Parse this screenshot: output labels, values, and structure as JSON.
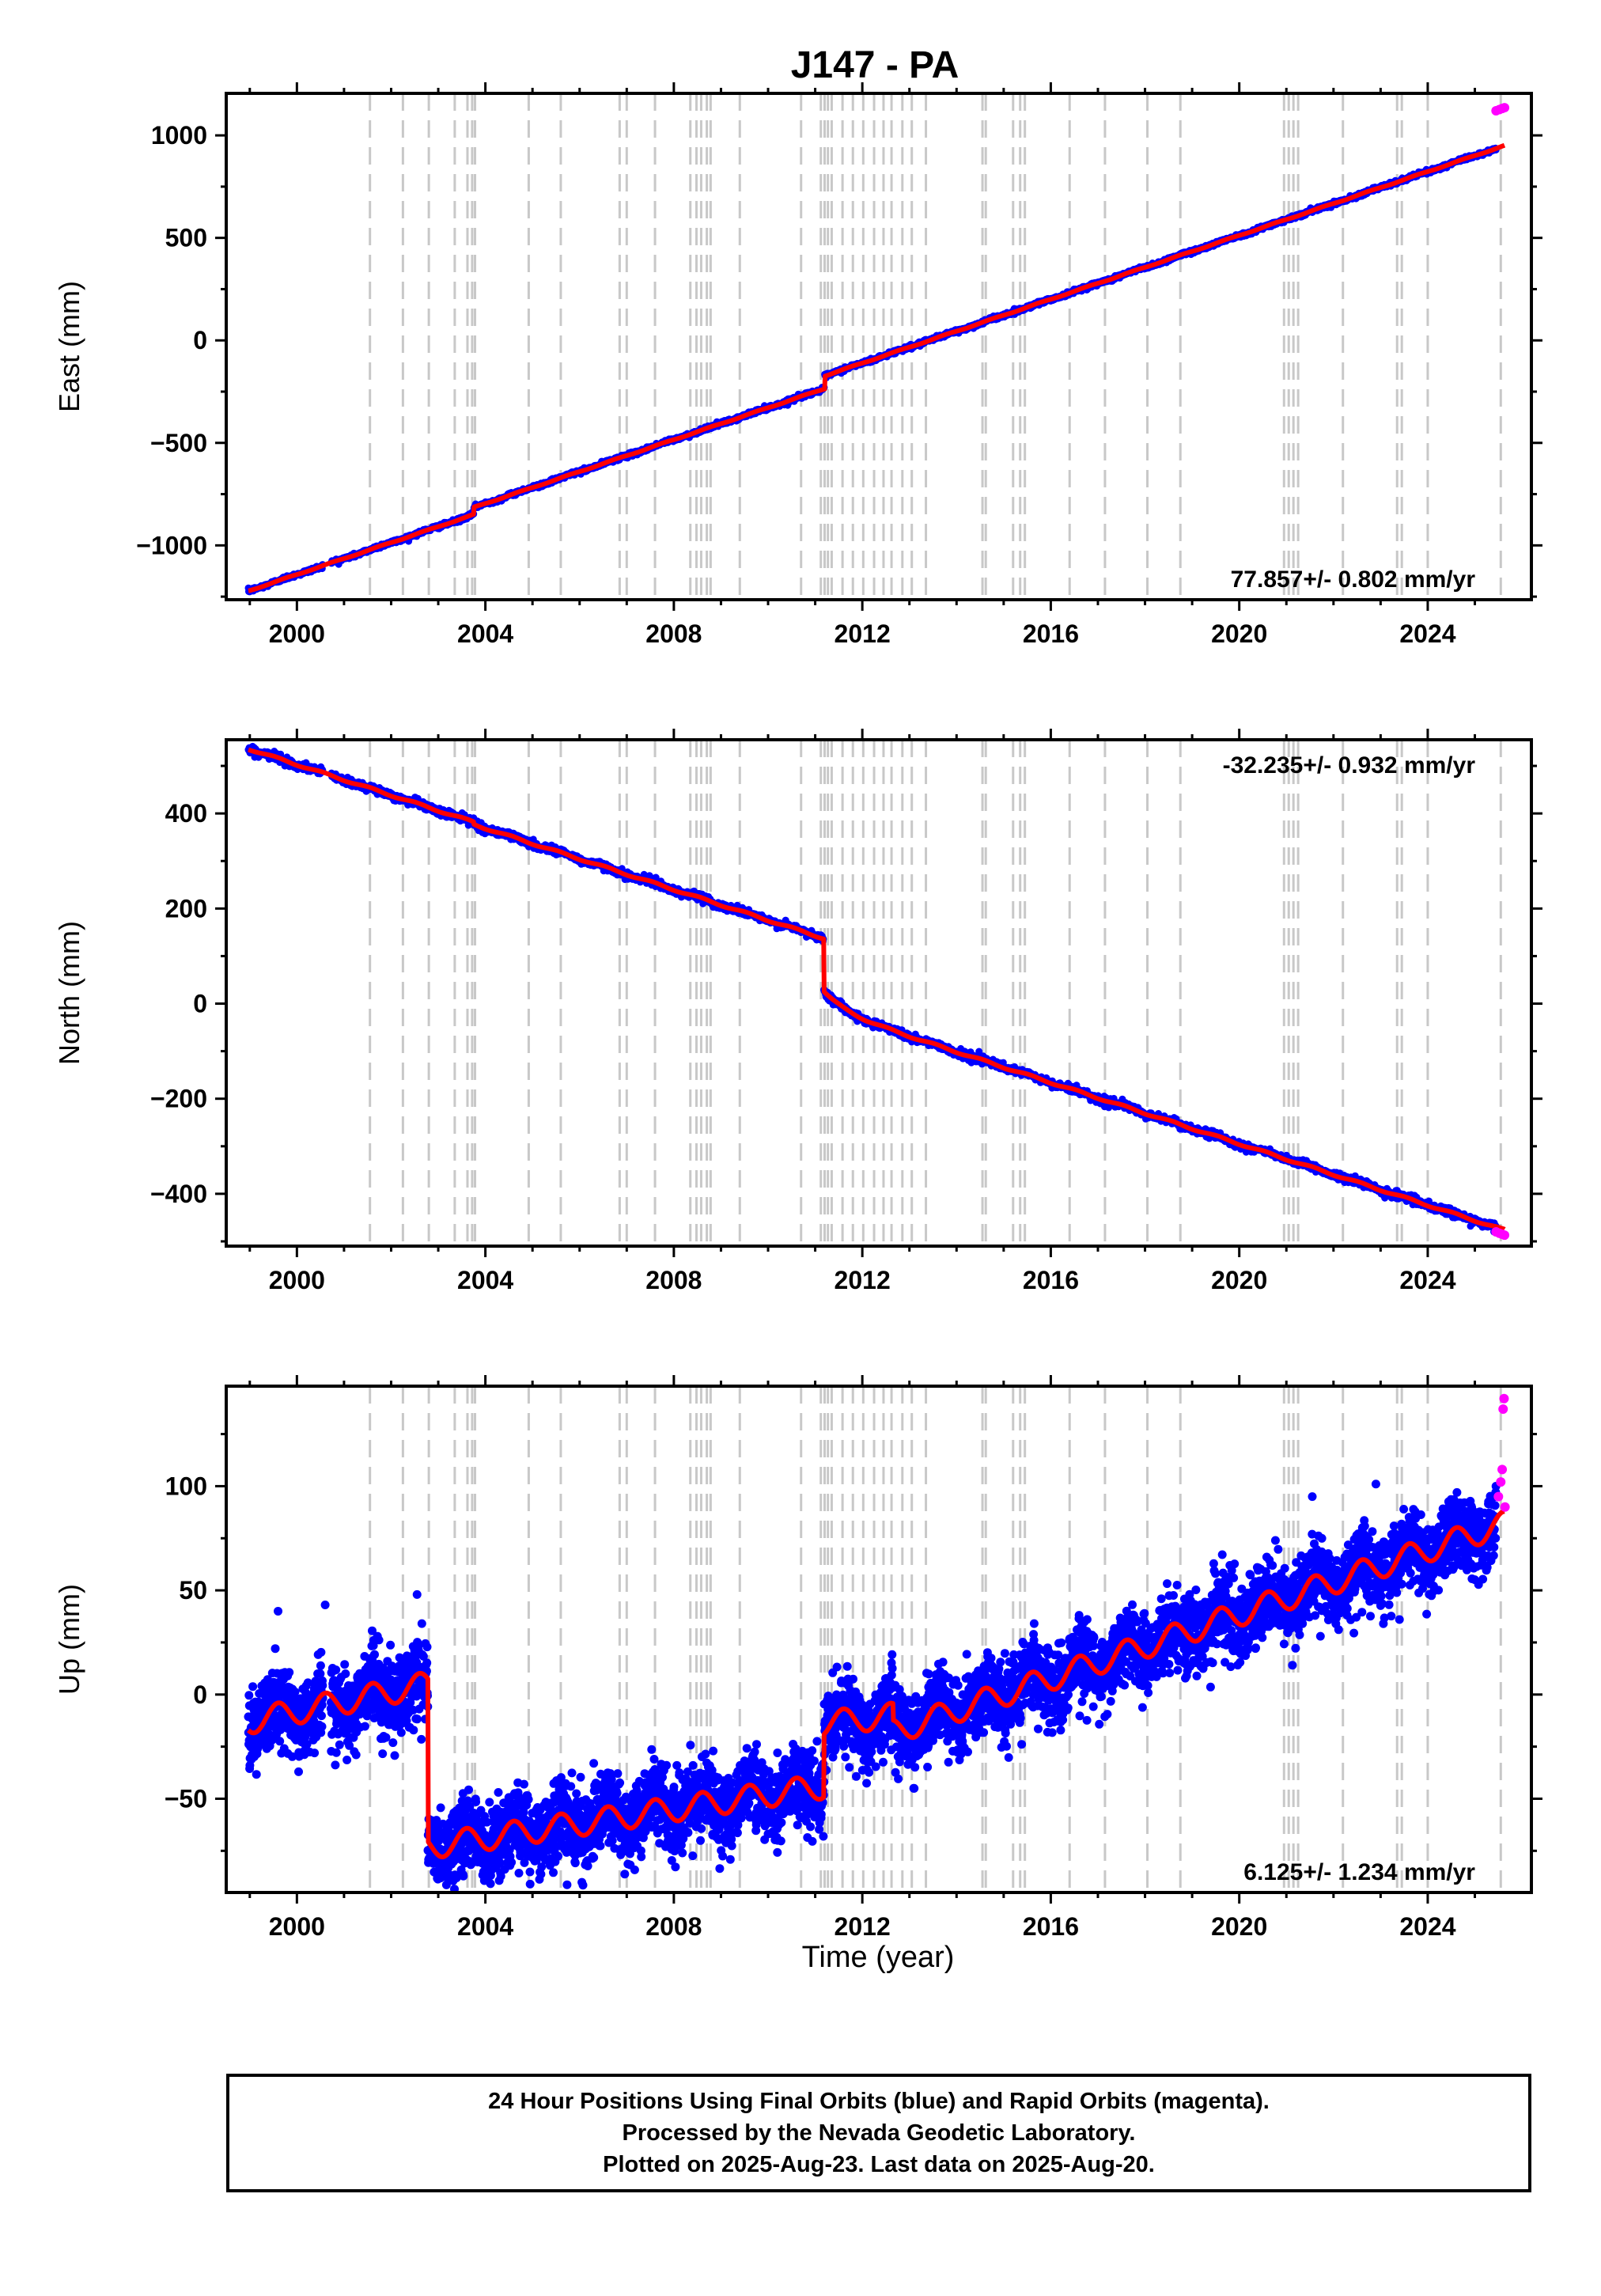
{
  "title": "J147 - PA",
  "xlabel": "Time (year)",
  "footer": {
    "line1": "24 Hour Positions Using Final Orbits (blue) and Rapid Orbits (magenta).",
    "line2": "Processed by the Nevada Geodetic Laboratory.",
    "line3": "Plotted on 2025-Aug-23. Last data on 2025-Aug-20."
  },
  "colors": {
    "final_orbits": "#0000ff",
    "rapid_orbits": "#ff00ff",
    "model": "#ff0000",
    "event_lines": "#c8c8c8"
  },
  "chart_data": {
    "type": "scatter",
    "xlim": [
      1998.5,
      2026.2
    ],
    "x_ticks": [
      2000,
      2004,
      2008,
      2012,
      2016,
      2020,
      2024
    ],
    "event_years": [
      2001.55,
      2002.25,
      2002.8,
      2003.35,
      2003.62,
      2003.72,
      2003.78,
      2004.92,
      2005.6,
      2006.85,
      2007.0,
      2007.6,
      2008.35,
      2008.48,
      2008.58,
      2008.7,
      2008.78,
      2009.4,
      2010.7,
      2011.12,
      2011.2,
      2011.27,
      2011.35,
      2011.58,
      2011.8,
      2012.02,
      2012.25,
      2012.45,
      2012.62,
      2012.85,
      2013.05,
      2013.35,
      2014.55,
      2014.62,
      2015.2,
      2015.35,
      2015.45,
      2016.4,
      2017.15,
      2018.05,
      2018.75,
      2020.95,
      2021.05,
      2021.15,
      2021.25,
      2022.2,
      2023.35,
      2023.45,
      2024.0,
      2025.55
    ],
    "panels": [
      {
        "id": "east",
        "ylabel": "East (mm)",
        "ylim": [
          -1265,
          1205
        ],
        "y_ticks": [
          -1000,
          -500,
          0,
          500,
          1000
        ],
        "rate_label": "77.857+/- 0.802 mm/yr",
        "rate_position": "bottom-right",
        "model": {
          "rate": 77.857,
          "reference": [
            1999.0,
            -1220
          ],
          "offsets": [
            [
              2003.75,
              35
            ],
            [
              2011.2,
              62
            ]
          ],
          "annual_amplitude": 2,
          "annual_phase": 0.5,
          "noise": 5
        },
        "rapid_tail": [
          [
            2025.45,
            1120
          ],
          [
            2025.52,
            1126
          ],
          [
            2025.58,
            1131
          ],
          [
            2025.63,
            1135
          ]
        ]
      },
      {
        "id": "north",
        "ylabel": "North (mm)",
        "ylim": [
          -510,
          555
        ],
        "y_ticks": [
          -400,
          -200,
          0,
          200,
          400
        ],
        "rate_label": "-32.235+/- 0.932 mm/yr",
        "rate_position": "top-right",
        "model": {
          "rate": -32.235,
          "reference": [
            1999.0,
            535
          ],
          "offsets": [
            [
              2003.75,
              -5
            ],
            [
              2011.18,
              -110
            ]
          ],
          "annual_amplitude": 2,
          "annual_phase": 0.3,
          "noise": 4,
          "postseismic": {
            "start": 2011.18,
            "amplitude": -38,
            "tau": 0.45
          }
        },
        "rapid_tail": [
          [
            2025.45,
            -480
          ],
          [
            2025.52,
            -483
          ],
          [
            2025.58,
            -485
          ],
          [
            2025.63,
            -487
          ]
        ]
      },
      {
        "id": "up",
        "ylabel": "Up (mm)",
        "ylim": [
          -95,
          148
        ],
        "y_ticks": [
          -50,
          0,
          50,
          100
        ],
        "rate_label": "6.125+/- 1.234 mm/yr",
        "rate_position": "bottom-right",
        "model": {
          "segments": [
            {
              "start": 1998.97,
              "end": 2002.78,
              "y0": -13,
              "y1": 5
            },
            {
              "start": 2002.78,
              "end": 2011.18,
              "y0": -73,
              "y1": -44
            },
            {
              "start": 2011.18,
              "end": 2012.65,
              "y0": -14,
              "y1": -10
            },
            {
              "start": 2012.65,
              "end": 2025.63,
              "y0": -18,
              "y1": 82
            }
          ],
          "annual_amplitude": 6,
          "annual_phase": 0.35,
          "noise": 9
        },
        "outliers": [
          [
            1999.6,
            40
          ],
          [
            2000.6,
            43
          ],
          [
            2002.55,
            48
          ],
          [
            2003.05,
            -88
          ],
          [
            2006.3,
            -33
          ],
          [
            2010.2,
            -28
          ],
          [
            2016.6,
            30
          ],
          [
            2019.8,
            62
          ],
          [
            2021.55,
            95
          ],
          [
            2023.4,
            36
          ],
          [
            2022.9,
            101
          ]
        ],
        "rapid_tail": [
          [
            2025.5,
            95
          ],
          [
            2025.55,
            102
          ],
          [
            2025.58,
            108
          ],
          [
            2025.6,
            137
          ],
          [
            2025.62,
            142
          ],
          [
            2025.64,
            90
          ]
        ]
      }
    ]
  }
}
